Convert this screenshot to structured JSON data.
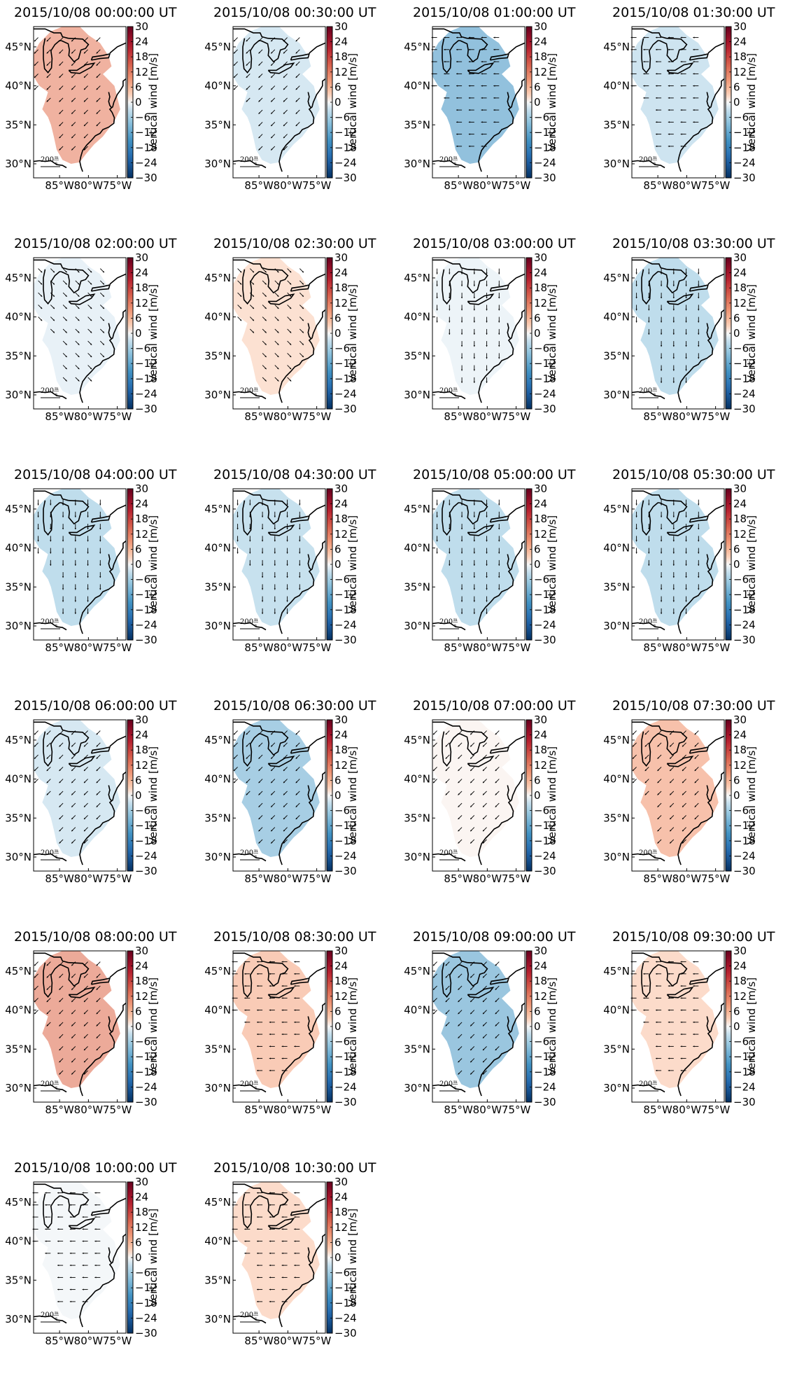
{
  "figure": {
    "colorbar_label": "Vertical wind [m/s]",
    "colorbar_ticks": [
      30,
      24,
      18,
      12,
      6,
      0,
      -6,
      -12,
      -18,
      -24,
      -30
    ],
    "lat_ticks": [
      "45°N",
      "40°N",
      "35°N",
      "30°N"
    ],
    "lon_ticks": [
      "85°W",
      "80°W",
      "75°W"
    ],
    "scale_value": "200",
    "scale_unit_num": "m",
    "scale_unit_den": "s",
    "colormap": "RdBu_r",
    "panels": [
      {
        "title": "2015/10/08 00:00:00 UT",
        "value": 10.5,
        "arrow_dir": "sw"
      },
      {
        "title": "2015/10/08 00:30:00 UT",
        "value": -3.5,
        "arrow_dir": "sw"
      },
      {
        "title": "2015/10/08 01:00:00 UT",
        "value": -13,
        "arrow_dir": "w"
      },
      {
        "title": "2015/10/08 01:30:00 UT",
        "value": -4.5,
        "arrow_dir": "w"
      },
      {
        "title": "2015/10/08 02:00:00 UT",
        "value": -1.5,
        "arrow_dir": "se"
      },
      {
        "title": "2015/10/08 02:30:00 UT",
        "value": 3,
        "arrow_dir": "se"
      },
      {
        "title": "2015/10/08 03:00:00 UT",
        "value": -1,
        "arrow_dir": "s"
      },
      {
        "title": "2015/10/08 03:30:00 UT",
        "value": -6.5,
        "arrow_dir": "s"
      },
      {
        "title": "2015/10/08 04:00:00 UT",
        "value": -6.5,
        "arrow_dir": "s"
      },
      {
        "title": "2015/10/08 04:30:00 UT",
        "value": -5.5,
        "arrow_dir": "s"
      },
      {
        "title": "2015/10/08 05:00:00 UT",
        "value": -6.5,
        "arrow_dir": "s"
      },
      {
        "title": "2015/10/08 05:30:00 UT",
        "value": -6.5,
        "arrow_dir": "s"
      },
      {
        "title": "2015/10/08 06:00:00 UT",
        "value": -3.5,
        "arrow_dir": "sw"
      },
      {
        "title": "2015/10/08 06:30:00 UT",
        "value": -10,
        "arrow_dir": "sw"
      },
      {
        "title": "2015/10/08 07:00:00 UT",
        "value": 0.5,
        "arrow_dir": "sw"
      },
      {
        "title": "2015/10/08 07:30:00 UT",
        "value": 8,
        "arrow_dir": "sw"
      },
      {
        "title": "2015/10/08 08:00:00 UT",
        "value": 12,
        "arrow_dir": "sw"
      },
      {
        "title": "2015/10/08 08:30:00 UT",
        "value": 6.5,
        "arrow_dir": "w"
      },
      {
        "title": "2015/10/08 09:00:00 UT",
        "value": -12,
        "arrow_dir": "sw"
      },
      {
        "title": "2015/10/08 09:30:00 UT",
        "value": 4,
        "arrow_dir": "w"
      },
      {
        "title": "2015/10/08 10:00:00 UT",
        "value": -0.5,
        "arrow_dir": "w"
      },
      {
        "title": "2015/10/08 10:30:00 UT",
        "value": 4,
        "arrow_dir": "w"
      }
    ]
  }
}
